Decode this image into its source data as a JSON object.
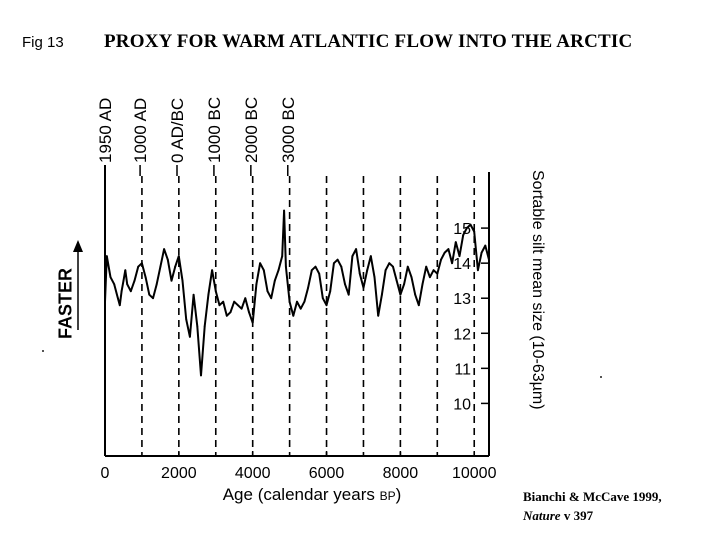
{
  "figure": {
    "label": "Fig 13",
    "title": "PROXY FOR WARM ATLANTIC FLOW INTO THE ARCTIC",
    "faster_label": "FASTER",
    "citation": {
      "line1": "Bianchi & McCave 1999,",
      "journal": "Nature",
      "volume": "v 397"
    }
  },
  "chart_data": {
    "type": "line",
    "xlabel": "Age (calendar years",
    "xlabel_suffix": "BP",
    "xlabel_close": ")",
    "ylabel": "Sortable silt mean size (10-63µm)",
    "xlim": [
      0,
      10400
    ],
    "ylim": [
      8.5,
      16.6
    ],
    "x_ticks": [
      {
        "value": 0,
        "label": "0"
      },
      {
        "value": 2000,
        "label": "2000"
      },
      {
        "value": 4000,
        "label": "4000"
      },
      {
        "value": 6000,
        "label": "6000"
      },
      {
        "value": 8000,
        "label": "8000"
      },
      {
        "value": 10000,
        "label": "10000"
      }
    ],
    "y_ticks": [
      {
        "value": 10,
        "label": "10"
      },
      {
        "value": 11,
        "label": "11"
      },
      {
        "value": 12,
        "label": "12"
      },
      {
        "value": 13,
        "label": "13"
      },
      {
        "value": 14,
        "label": "14"
      },
      {
        "value": 15,
        "label": "15"
      }
    ],
    "dashed_verticals": [
      1000,
      2000,
      3000,
      4000,
      5000,
      6000,
      7000,
      8000,
      9000,
      10000
    ],
    "era_markers": [
      {
        "value": 0,
        "label": "1950 AD"
      },
      {
        "value": 950,
        "label": "1000 AD"
      },
      {
        "value": 1950,
        "label": "0 AD/BC"
      },
      {
        "value": 2950,
        "label": "1000 BC"
      },
      {
        "value": 3950,
        "label": "2000 BC"
      },
      {
        "value": 4950,
        "label": "3000 BC"
      }
    ],
    "series": [
      {
        "x": [
          0,
          50,
          150,
          250,
          350,
          400,
          450,
          500,
          550,
          600,
          700,
          800,
          900,
          1000,
          1100,
          1200,
          1300,
          1400,
          1500,
          1600,
          1700,
          1800,
          1900,
          2000,
          2100,
          2200,
          2300,
          2400,
          2500,
          2600,
          2700,
          2800,
          2900,
          3000,
          3100,
          3200,
          3300,
          3400,
          3500,
          3600,
          3700,
          3800,
          3900,
          4000,
          4100,
          4200,
          4300,
          4400,
          4500,
          4600,
          4700,
          4800,
          4850,
          4900,
          5000,
          5100,
          5200,
          5300,
          5400,
          5500,
          5600,
          5700,
          5800,
          5900,
          6000,
          6100,
          6200,
          6300,
          6400,
          6500,
          6600,
          6700,
          6800,
          6900,
          7000,
          7100,
          7200,
          7300,
          7400,
          7500,
          7600,
          7700,
          7800,
          7900,
          8000,
          8100,
          8200,
          8300,
          8400,
          8500,
          8600,
          8700,
          8800,
          8900,
          9000,
          9100,
          9200,
          9300,
          9400,
          9500,
          9600,
          9700,
          9800,
          9900,
          10000,
          10100,
          10200,
          10300,
          10400
        ],
        "y": [
          12.9,
          14.2,
          13.6,
          13.4,
          13.0,
          12.8,
          13.2,
          13.5,
          13.8,
          13.4,
          13.2,
          13.5,
          13.9,
          14.0,
          13.6,
          13.1,
          13.0,
          13.4,
          13.9,
          14.4,
          14.1,
          13.5,
          13.9,
          14.2,
          13.5,
          12.4,
          11.9,
          13.1,
          12.2,
          10.8,
          12.2,
          13.1,
          13.8,
          13.2,
          12.8,
          12.9,
          12.5,
          12.6,
          12.9,
          12.8,
          12.7,
          13.0,
          12.6,
          12.3,
          13.4,
          14.0,
          13.8,
          13.2,
          13.0,
          13.5,
          13.8,
          14.2,
          15.5,
          13.9,
          12.9,
          12.5,
          12.9,
          12.7,
          12.9,
          13.3,
          13.8,
          13.9,
          13.7,
          13.0,
          12.8,
          13.2,
          14.0,
          14.1,
          13.9,
          13.4,
          13.1,
          14.2,
          14.4,
          13.7,
          13.3,
          13.8,
          14.2,
          13.6,
          12.5,
          13.1,
          13.8,
          14.0,
          13.9,
          13.5,
          13.1,
          13.4,
          13.9,
          13.6,
          13.1,
          12.8,
          13.4,
          13.9,
          13.6,
          13.8,
          13.7,
          14.1,
          14.3,
          14.4,
          14.0,
          14.6,
          14.2,
          14.8,
          15.0,
          15.1,
          14.9,
          13.8,
          14.3,
          14.5,
          14.1
        ]
      }
    ],
    "grid": false
  }
}
